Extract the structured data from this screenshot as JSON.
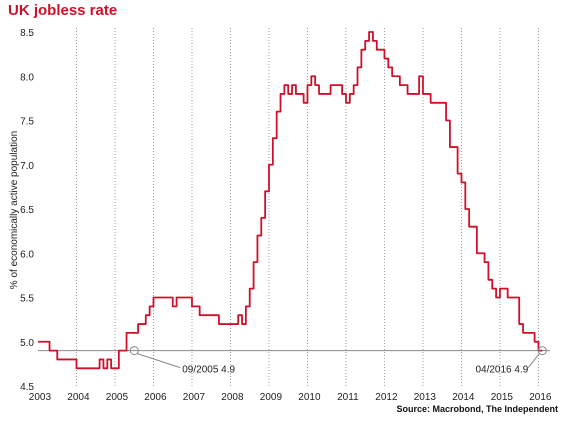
{
  "chart_data": {
    "type": "line",
    "title": "UK jobless rate",
    "ylabel": "% of economically active population",
    "xlabel": "",
    "source": "Source: Macrobond, The Independent",
    "xlim": [
      2003.0,
      2016.3
    ],
    "ylim": [
      4.5,
      8.5
    ],
    "x_ticks": [
      "2003",
      "2004",
      "2005",
      "2006",
      "2007",
      "2008",
      "2009",
      "2010",
      "2011",
      "2012",
      "2013",
      "2014",
      "2015",
      "2016"
    ],
    "y_ticks": [
      "4.5",
      "5.0",
      "5.5",
      "6.0",
      "6.5",
      "7.0",
      "7.5",
      "8.0",
      "8.5"
    ],
    "grid": "vertical dotted",
    "colors": {
      "series": "#d0102a",
      "reference": "#888888",
      "title": "#d0102a"
    },
    "reference_line": {
      "y": 4.9
    },
    "annotations": [
      {
        "x": 2005.5,
        "y": 4.9,
        "label": "09/2005 4.9"
      },
      {
        "x": 2016.1,
        "y": 4.9,
        "label": "04/2016 4.9"
      }
    ],
    "series": [
      {
        "x": [
          2003.0,
          2003.2,
          2003.3,
          2003.5,
          2003.9,
          2004.0,
          2004.5,
          2004.6,
          2004.7,
          2004.8,
          2004.9,
          2005.0,
          2005.1,
          2005.3,
          2005.5,
          2005.6,
          2005.7,
          2005.8,
          2005.9,
          2006.0,
          2006.1,
          2006.2,
          2006.5,
          2006.6,
          2006.7,
          2007.0,
          2007.2,
          2007.3,
          2007.7,
          2007.8,
          2007.9,
          2008.0,
          2008.2,
          2008.3,
          2008.4,
          2008.5,
          2008.6,
          2008.7,
          2008.8,
          2008.9,
          2009.0,
          2009.1,
          2009.2,
          2009.3,
          2009.4,
          2009.5,
          2009.6,
          2009.7,
          2009.8,
          2009.9,
          2010.0,
          2010.1,
          2010.2,
          2010.3,
          2010.5,
          2010.6,
          2010.8,
          2010.9,
          2011.0,
          2011.1,
          2011.2,
          2011.3,
          2011.4,
          2011.5,
          2011.6,
          2011.7,
          2011.8,
          2011.9,
          2012.0,
          2012.1,
          2012.2,
          2012.4,
          2012.5,
          2012.6,
          2012.8,
          2012.9,
          2013.0,
          2013.1,
          2013.2,
          2013.3,
          2013.5,
          2013.6,
          2013.7,
          2013.8,
          2013.9,
          2014.0,
          2014.1,
          2014.2,
          2014.4,
          2014.5,
          2014.6,
          2014.7,
          2014.8,
          2014.9,
          2015.0,
          2015.1,
          2015.2,
          2015.5,
          2015.6,
          2015.7,
          2015.8,
          2015.9,
          2016.0,
          2016.1
        ],
        "y": [
          5.0,
          5.0,
          4.9,
          4.8,
          4.8,
          4.7,
          4.7,
          4.8,
          4.7,
          4.8,
          4.7,
          4.7,
          4.9,
          5.1,
          5.1,
          5.2,
          5.2,
          5.3,
          5.4,
          5.5,
          5.5,
          5.5,
          5.4,
          5.5,
          5.5,
          5.4,
          5.3,
          5.3,
          5.2,
          5.2,
          5.2,
          5.2,
          5.3,
          5.2,
          5.4,
          5.6,
          5.9,
          6.2,
          6.4,
          6.7,
          7.0,
          7.3,
          7.6,
          7.8,
          7.9,
          7.8,
          7.9,
          7.8,
          7.8,
          7.7,
          7.9,
          8.0,
          7.9,
          7.8,
          7.8,
          7.9,
          7.9,
          7.8,
          7.7,
          7.8,
          7.9,
          8.1,
          8.3,
          8.4,
          8.5,
          8.4,
          8.3,
          8.3,
          8.2,
          8.1,
          8.0,
          7.9,
          7.9,
          7.8,
          7.8,
          8.0,
          7.8,
          7.8,
          7.7,
          7.7,
          7.7,
          7.5,
          7.2,
          7.2,
          6.9,
          6.8,
          6.5,
          6.3,
          6.0,
          6.0,
          5.9,
          5.7,
          5.6,
          5.5,
          5.6,
          5.6,
          5.5,
          5.2,
          5.1,
          5.1,
          5.1,
          5.0,
          4.9,
          4.9
        ]
      }
    ]
  }
}
